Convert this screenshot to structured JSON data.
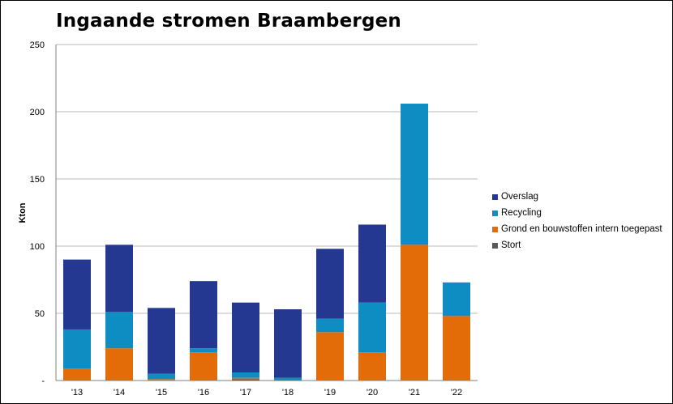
{
  "chart_data": {
    "type": "bar",
    "stacked": true,
    "title": "Ingaande stromen Braambergen",
    "ylabel": "Kton",
    "xlabel": "",
    "ylim": [
      0,
      250
    ],
    "yticks": [
      0,
      50,
      100,
      150,
      200,
      250
    ],
    "ytick_labels": [
      "-",
      "50",
      "100",
      "150",
      "200",
      "250"
    ],
    "grid": true,
    "legend_position": "right",
    "categories": [
      "'13",
      "'14",
      "'15",
      "'16",
      "'17",
      "'18",
      "'19",
      "'20",
      "'21",
      "'22"
    ],
    "series": [
      {
        "name": "Stort",
        "color": "#595959",
        "values": [
          0,
          0,
          0,
          0,
          1,
          0,
          0,
          0,
          0,
          0
        ]
      },
      {
        "name": "Grond en bouwstoffen intern toegepast",
        "color": "#E36C09",
        "values": [
          9,
          24,
          1,
          21,
          1,
          0,
          36,
          21,
          101,
          48
        ]
      },
      {
        "name": "Recycling",
        "color": "#0E8DC2",
        "values": [
          29,
          27,
          4,
          3,
          4,
          2,
          10,
          37,
          105,
          25
        ]
      },
      {
        "name": "Overslag",
        "color": "#253891",
        "values": [
          52,
          50,
          49,
          50,
          52,
          51,
          52,
          58,
          0,
          0
        ]
      }
    ],
    "legend_order": [
      "Overslag",
      "Recycling",
      "Grond en bouwstoffen intern toegepast",
      "Stort"
    ]
  }
}
